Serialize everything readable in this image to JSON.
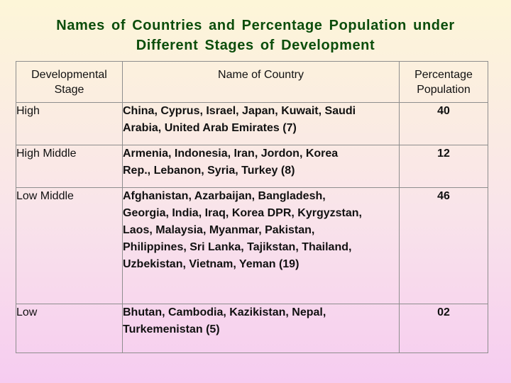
{
  "title": {
    "line1": "Names of Countries and Percentage Population under",
    "line2": "Different Stages of Development"
  },
  "table": {
    "headers": {
      "stage": "Developmental Stage",
      "country": "Name of Country",
      "percentage": "Percentage Population"
    },
    "rows": [
      {
        "stage": "High",
        "countries": "China, Cyprus, Israel, Japan, Kuwait, Saudi Arabia, United Arab Emirates (7)",
        "percentage": "40"
      },
      {
        "stage": "High Middle",
        "countries": "Armenia, Indonesia, Iran, Jordon, Korea Rep., Lebanon, Syria, Turkey (8)",
        "percentage": "12"
      },
      {
        "stage": "Low Middle",
        "countries": "Afghanistan, Azarbaijan, Bangladesh, Georgia, India, Iraq, Korea DPR, Kyrgyzstan, Laos, Malaysia, Myanmar, Pakistan, Philippines, Sri Lanka, Tajikstan, Thailand, Uzbekistan, Vietnam, Yeman (19)",
        "percentage": "46"
      },
      {
        "stage": "Low",
        "countries": "Bhutan, Cambodia, Kazikistan, Nepal, Turkemenistan (5)",
        "percentage": "02"
      }
    ]
  }
}
